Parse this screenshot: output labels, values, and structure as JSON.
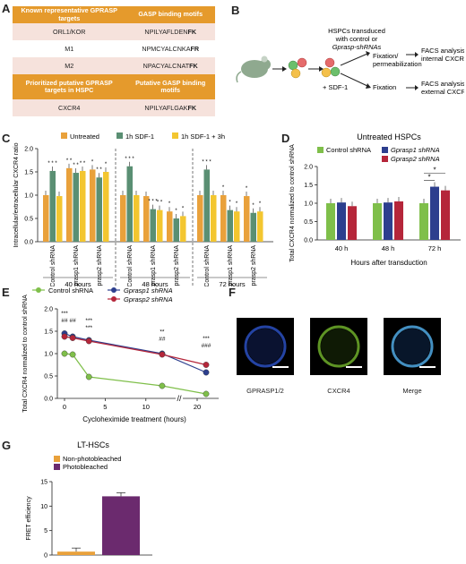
{
  "panel_letters": [
    "A",
    "B",
    "C",
    "D",
    "E",
    "F",
    "G"
  ],
  "panel_a": {
    "header1": [
      "Known representative GPRASP targets",
      "GASP binding motifs"
    ],
    "rows1": [
      {
        "target": "ORL1/KOR",
        "motif": "NPILYAFLDEN",
        "motif_bold": "FK"
      },
      {
        "target": "M1",
        "motif": "NPMCYALCNKA",
        "motif_bold": "FR"
      },
      {
        "target": "M2",
        "motif": "NPACYALCNAT",
        "motif_bold": "FK"
      }
    ],
    "header2": [
      "Prioritized putative GPRASP targets in HSPC",
      "Putative GASP binding motifs"
    ],
    "rows2": [
      {
        "target": "CXCR4",
        "motif": "NPILYAFLGAK",
        "motif_bold": "FK"
      }
    ]
  },
  "panel_b": {
    "transduced_1": "HSPCs transduced",
    "transduced_2": "with control or",
    "transduced_3": "Gprasp-shRNAs",
    "sdf": "+ SDF-1",
    "fix_perm_1": "Fixation/",
    "fix_perm_2": "permeabilization",
    "fixation": "Fixation",
    "facs_int_1": "FACS analysis",
    "facs_int_2": "internal CXCR4",
    "facs_ext_1": "FACS analysis",
    "facs_ext_2": "external CXCR4"
  },
  "chart_data": [
    {
      "panel": "C",
      "type": "bar",
      "ylabel": "Intracellular/extracellular CXCR4 ratio",
      "ylim": [
        0,
        2.0
      ],
      "yticks": [
        "0.0",
        "0.5",
        "1.0",
        "1.5",
        "2.0"
      ],
      "legend": [
        "Untreated",
        "1h SDF-1",
        "1h SDF-1 + 3h"
      ],
      "colors": {
        "untreated": "#e9a13b",
        "sdf": "#5a8f73",
        "sdf3h": "#f3c630"
      },
      "groups": [
        {
          "label": "40 hours",
          "categories": [
            "Control shRNA",
            "Gprasp1 shRNA",
            "Gprasp2 shRNA"
          ],
          "values": [
            [
              1.0,
              1.52,
              0.98
            ],
            [
              1.58,
              1.48,
              1.52
            ],
            [
              1.55,
              1.38,
              1.5
            ]
          ],
          "sig": [
            [
              "",
              "* * *",
              ""
            ],
            [
              "* *",
              "* *",
              "* *"
            ],
            [
              "*",
              "* *",
              "*"
            ]
          ]
        },
        {
          "label": "48 hours",
          "categories": [
            "Control shRNA",
            "Gprasp1 shRNA",
            "Gprasp2 shRNA"
          ],
          "values": [
            [
              1.0,
              1.62,
              1.0
            ],
            [
              0.98,
              0.7,
              0.68
            ],
            [
              0.65,
              0.5,
              0.55
            ]
          ],
          "sig": [
            [
              "",
              "* * *",
              ""
            ],
            [
              "",
              "* * *",
              "* *"
            ],
            [
              "*",
              "*",
              "*"
            ]
          ]
        },
        {
          "label": "72 hours",
          "categories": [
            "Control shRNA",
            "Gprasp1 shRNA",
            "Gprasp2 shRNA"
          ],
          "values": [
            [
              1.0,
              1.55,
              1.0
            ],
            [
              1.0,
              0.68,
              0.65
            ],
            [
              0.98,
              0.62,
              0.65
            ]
          ],
          "sig": [
            [
              "",
              "* * *",
              ""
            ],
            [
              "*",
              "*",
              "*"
            ],
            [
              "*",
              "*",
              "*"
            ]
          ]
        }
      ]
    },
    {
      "panel": "D",
      "type": "bar",
      "title": "Untreated HSPCs",
      "ylabel": "Total CXCR4 normalized to control shRNA",
      "xlabel": "Hours after transduction",
      "ylim": [
        0,
        2.0
      ],
      "yticks": [
        "0.0",
        "0.5",
        "1.0",
        "1.5",
        "2.0"
      ],
      "categories": [
        "40 h",
        "48 h",
        "72 h"
      ],
      "series": [
        {
          "name": "Control shRNA",
          "color": "#7fbf4a",
          "values": [
            1.0,
            1.0,
            1.0
          ]
        },
        {
          "name": "Gprasp1 shRNA",
          "color": "#2d3f8e",
          "values": [
            1.02,
            1.02,
            1.45
          ]
        },
        {
          "name": "Gprasp2 shRNA",
          "color": "#b5263a",
          "values": [
            0.92,
            1.05,
            1.35
          ]
        }
      ],
      "sig": [
        "*",
        "*"
      ]
    },
    {
      "panel": "E",
      "type": "line",
      "ylabel": "Total CXCR4 normalized to control shRNA",
      "xlabel": "Cycloheximide treatment (hours)",
      "ylim": [
        0,
        2.0
      ],
      "yticks": [
        "0.0",
        "0.5",
        "1.0",
        "1.5",
        "2.0"
      ],
      "xticks": [
        "0",
        "5",
        "10",
        "20"
      ],
      "series": [
        {
          "name": "Control shRNA",
          "color": "#7fbf4a",
          "x": [
            0,
            1,
            3,
            12,
            21
          ],
          "y": [
            1.0,
            0.98,
            0.48,
            0.28,
            0.1
          ]
        },
        {
          "name": "Gprasp1 shRNA",
          "color": "#2d3f8e",
          "x": [
            0,
            1,
            3,
            12,
            21
          ],
          "y": [
            1.45,
            1.38,
            1.3,
            1.0,
            0.58
          ]
        },
        {
          "name": "Gprasp2 shRNA",
          "color": "#b5263a",
          "x": [
            0,
            1,
            3,
            12,
            21
          ],
          "y": [
            1.38,
            1.35,
            1.28,
            0.98,
            0.75
          ]
        }
      ],
      "sig_top": [
        "***",
        "##",
        "***",
        "***",
        "##",
        "**",
        "##",
        "***",
        "###"
      ]
    },
    {
      "panel": "G",
      "type": "bar",
      "title": "LT-HSCs",
      "ylabel": "FRET efficiency",
      "ylim": [
        0,
        15
      ],
      "yticks": [
        "0",
        "5",
        "10",
        "15"
      ],
      "categories": [
        "Non-photobleached",
        "Photobleached"
      ],
      "values": [
        0.7,
        12
      ],
      "colors": [
        "#e9a13b",
        "#6b2a6e"
      ]
    }
  ],
  "panel_f": {
    "labels": [
      "GPRASP1/2",
      "CXCR4",
      "Merge"
    ]
  }
}
